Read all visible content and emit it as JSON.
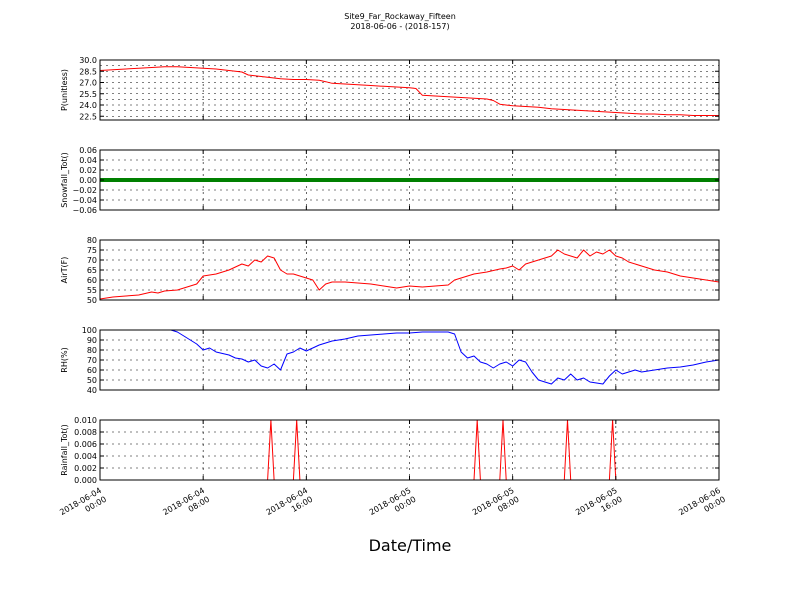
{
  "figure": {
    "title": "Site9_Far_Rockaway_Fifteen",
    "subtitle": "2018-06-06 - (2018-157)",
    "xlabel": "Date/Time",
    "x_ticks": [
      {
        "value": 0,
        "line1": "2018-06-04",
        "line2": "00:00"
      },
      {
        "value": 8,
        "line1": "2018-06-04",
        "line2": "08:00"
      },
      {
        "value": 16,
        "line1": "2018-06-04",
        "line2": "16:00"
      },
      {
        "value": 24,
        "line1": "2018-06-05",
        "line2": "00:00"
      },
      {
        "value": 32,
        "line1": "2018-06-05",
        "line2": "08:00"
      },
      {
        "value": 40,
        "line1": "2018-06-05",
        "line2": "16:00"
      },
      {
        "value": 48,
        "line1": "2018-06-06",
        "line2": "00:00"
      }
    ]
  },
  "chart_data": [
    {
      "type": "line",
      "ylabel": "P(unitless)",
      "ylim": [
        22.0,
        30.0
      ],
      "yticks": [
        "22.5",
        "24.0",
        "25.5",
        "27.0",
        "28.5",
        "30.0"
      ],
      "ytick_values": [
        22.5,
        24.0,
        25.5,
        27.0,
        28.5,
        30.0
      ],
      "minor_y": [
        23.25,
        24.75,
        26.25,
        27.75,
        29.25
      ],
      "xlim": [
        0,
        48
      ],
      "grid": true,
      "color": "#ff0000",
      "x": [
        0,
        1,
        2,
        3,
        4,
        5,
        6,
        7,
        8,
        9,
        10,
        11,
        11.5,
        12,
        13,
        14,
        15,
        16,
        17,
        17.5,
        18,
        19,
        20,
        21,
        22,
        23,
        24,
        24.5,
        25,
        26,
        27,
        28,
        29,
        30,
        30.5,
        31,
        32,
        33,
        34,
        35,
        36,
        37,
        38,
        39,
        40,
        41,
        42,
        43,
        44,
        45,
        46,
        47,
        48
      ],
      "y": [
        28.6,
        28.7,
        28.8,
        28.9,
        29.0,
        29.1,
        29.1,
        29.0,
        28.9,
        28.8,
        28.6,
        28.4,
        28.0,
        27.9,
        27.7,
        27.5,
        27.4,
        27.4,
        27.3,
        27.1,
        26.9,
        26.8,
        26.7,
        26.6,
        26.5,
        26.4,
        26.3,
        26.2,
        25.3,
        25.2,
        25.1,
        25.0,
        24.9,
        24.8,
        24.6,
        24.1,
        23.9,
        23.8,
        23.7,
        23.5,
        23.4,
        23.3,
        23.2,
        23.1,
        23.0,
        22.9,
        22.8,
        22.8,
        22.7,
        22.7,
        22.6,
        22.6,
        22.6
      ]
    },
    {
      "type": "line",
      "ylabel": "Snowfall_Tot()",
      "ylim": [
        -0.06,
        0.06
      ],
      "yticks": [
        "−0.06",
        "−0.04",
        "−0.02",
        "0.00",
        "0.02",
        "0.04",
        "0.06"
      ],
      "ytick_values": [
        -0.06,
        -0.04,
        -0.02,
        0.0,
        0.02,
        0.04,
        0.06
      ],
      "minor_y": [],
      "xlim": [
        0,
        48
      ],
      "grid": true,
      "color": "#008000",
      "thick": true,
      "x": [
        0,
        48
      ],
      "y": [
        0.0,
        0.0
      ]
    },
    {
      "type": "line",
      "ylabel": "AirT(F)",
      "ylim": [
        50,
        80
      ],
      "yticks": [
        "50",
        "55",
        "60",
        "65",
        "70",
        "75",
        "80"
      ],
      "ytick_values": [
        50,
        55,
        60,
        65,
        70,
        75,
        80
      ],
      "minor_y": [],
      "xlim": [
        0,
        48
      ],
      "grid": true,
      "color": "#ff0000",
      "x": [
        0,
        1,
        2,
        3,
        4,
        4.5,
        5,
        6,
        7,
        7.5,
        8,
        9,
        10,
        11,
        11.5,
        12,
        12.5,
        13,
        13.5,
        14,
        14.5,
        15,
        16,
        16.5,
        17,
        17.5,
        18,
        19,
        20,
        21,
        22,
        23,
        24,
        25,
        26,
        27,
        27.5,
        28,
        29,
        30,
        31,
        31.5,
        32,
        32.5,
        33,
        34,
        35,
        35.5,
        36,
        36.5,
        37,
        37.5,
        38,
        38.5,
        39,
        39.5,
        40,
        40.5,
        41,
        42,
        43,
        44,
        45,
        46,
        47,
        48
      ],
      "y": [
        50.5,
        51.5,
        52,
        52.5,
        54,
        53.5,
        54.5,
        55,
        57,
        58,
        62,
        63,
        65,
        68,
        67,
        70,
        69,
        72,
        71,
        65,
        63,
        63,
        61,
        60,
        55,
        58,
        59,
        59,
        58.5,
        58,
        57,
        56,
        57,
        56.5,
        57,
        57.5,
        60,
        61,
        63,
        64,
        65.5,
        66,
        67,
        65,
        68,
        70,
        72,
        75,
        73,
        72,
        71,
        75,
        72,
        74,
        73,
        75,
        72,
        71,
        69,
        67,
        65,
        64,
        62,
        61,
        60,
        59
      ]
    },
    {
      "type": "line",
      "ylabel": "RH(%)",
      "ylim": [
        40,
        100
      ],
      "yticks": [
        "40",
        "50",
        "60",
        "70",
        "80",
        "90",
        "100"
      ],
      "ytick_values": [
        40,
        50,
        60,
        70,
        80,
        90,
        100
      ],
      "minor_y": [],
      "xlim": [
        0,
        48
      ],
      "grid": true,
      "color": "#0000ff",
      "x": [
        5.5,
        6,
        7,
        7.5,
        8,
        8.5,
        9,
        10,
        10.5,
        11,
        11.5,
        12,
        12.5,
        13,
        13.5,
        14,
        14.5,
        15,
        15.5,
        16,
        17,
        18,
        19,
        20,
        21,
        22,
        23,
        24,
        25,
        26,
        27,
        27.5,
        28,
        28.5,
        29,
        29.5,
        30,
        30.5,
        31,
        31.5,
        32,
        32.5,
        33,
        33.5,
        34,
        34.5,
        35,
        35.5,
        36,
        36.5,
        37,
        37.5,
        38,
        38.5,
        39,
        39.5,
        40,
        40.5,
        41,
        41.5,
        42,
        43,
        44,
        45,
        46,
        47,
        48
      ],
      "y": [
        100,
        98,
        90,
        86,
        80,
        82,
        78,
        75,
        72,
        71,
        68,
        70,
        64,
        62,
        66,
        60,
        76,
        78,
        82,
        79,
        85,
        89,
        91,
        94,
        95,
        96,
        97,
        97,
        98,
        98,
        98,
        96,
        78,
        72,
        74,
        68,
        66,
        62,
        66,
        68,
        64,
        70,
        68,
        58,
        50,
        48,
        46,
        52,
        50,
        56,
        50,
        52,
        48,
        47,
        46,
        54,
        60,
        56,
        58,
        60,
        58,
        60,
        62,
        63,
        65,
        68,
        70
      ]
    },
    {
      "type": "line",
      "ylabel": "Rainfall_Tot()",
      "ylim": [
        0.0,
        0.01
      ],
      "yticks": [
        "0.000",
        "0.002",
        "0.004",
        "0.006",
        "0.008",
        "0.010"
      ],
      "ytick_values": [
        0.0,
        0.002,
        0.004,
        0.006,
        0.008,
        0.01
      ],
      "minor_y": [],
      "xlim": [
        0,
        48
      ],
      "grid": true,
      "color": "#ff0000",
      "x": [
        0,
        13.0,
        13.25,
        13.5,
        15.0,
        15.25,
        15.5,
        29.0,
        29.25,
        29.5,
        31.0,
        31.25,
        31.5,
        36.0,
        36.25,
        36.5,
        39.5,
        39.75,
        40.0,
        48
      ],
      "y": [
        0,
        0,
        0.01,
        0,
        0,
        0.01,
        0,
        0,
        0.01,
        0,
        0,
        0.01,
        0,
        0,
        0.01,
        0,
        0,
        0.01,
        0,
        0
      ]
    }
  ]
}
